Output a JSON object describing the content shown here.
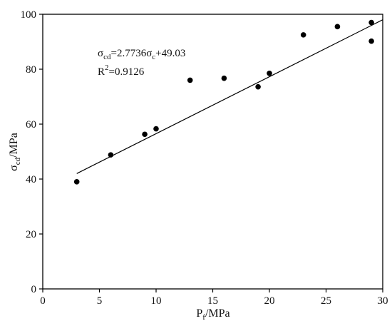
{
  "chart_data": {
    "type": "scatter",
    "xlabel": {
      "main": "P",
      "sub": "f",
      "rest": "/MPa"
    },
    "ylabel": {
      "main": "σ",
      "sub": "cd",
      "rest": "/MPa"
    },
    "xlim": [
      0,
      30
    ],
    "ylim": [
      0,
      100
    ],
    "xticks": [
      0,
      5,
      10,
      15,
      20,
      25,
      30
    ],
    "yticks": [
      0,
      20,
      40,
      60,
      80,
      100
    ],
    "grid": false,
    "legend": "none",
    "points": [
      {
        "x": 3,
        "y": 39
      },
      {
        "x": 6,
        "y": 48.8
      },
      {
        "x": 9,
        "y": 56.3
      },
      {
        "x": 10,
        "y": 58.3
      },
      {
        "x": 13,
        "y": 76
      },
      {
        "x": 16,
        "y": 76.7
      },
      {
        "x": 19,
        "y": 73.6
      },
      {
        "x": 20,
        "y": 78.5
      },
      {
        "x": 23,
        "y": 92.5
      },
      {
        "x": 26,
        "y": 95.5
      },
      {
        "x": 29,
        "y": 97
      },
      {
        "x": 29,
        "y": 90.2
      }
    ],
    "fit_line": {
      "x": [
        3,
        30
      ],
      "y": [
        42,
        98
      ]
    },
    "equation": {
      "lhs_main": "σ",
      "lhs_sub": "cd",
      "mid": "=2.7736σ",
      "rhs_sub": "c",
      "rhs_rest": "+49.03"
    },
    "r2": {
      "main": "R",
      "sup": "2",
      "rest": "=0.9126"
    },
    "colors": {
      "marker": "#000000",
      "line": "#000000",
      "axis": "#000000"
    }
  }
}
